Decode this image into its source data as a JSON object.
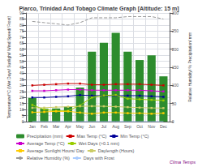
{
  "chart_data": {
    "type": "bar",
    "title": "Piarco, Trinidad And Tobago Climate Graph [Altitude: 15 m]",
    "categories": [
      "Jan",
      "Feb",
      "Mar",
      "Apr",
      "May",
      "Jun",
      "Jul",
      "Aug",
      "Sep",
      "Oct",
      "Nov",
      "Dec"
    ],
    "series": [
      {
        "name": "Precipitation (mm)",
        "type": "bar",
        "axis": "y2",
        "color": "#2d8c2d",
        "values": [
          65.5,
          35.5,
          36.3,
          41.1,
          94.0,
          193.0,
          218.0,
          245.0,
          193.0,
          170.0,
          183.0,
          125.0
        ]
      },
      {
        "name": "Max Temp (°C)",
        "type": "line",
        "color": "#cc0000",
        "marker": "square",
        "values": [
          30.0,
          30.5,
          31.0,
          31.5,
          31.5,
          30.5,
          30.5,
          31.0,
          31.0,
          31.0,
          30.5,
          30.0
        ]
      },
      {
        "name": "Min Temp (°C)",
        "type": "line",
        "color": "#000099",
        "marker": "square",
        "values": [
          20.0,
          20.0,
          20.5,
          21.0,
          22.0,
          21.5,
          21.5,
          21.5,
          21.5,
          21.5,
          21.0,
          20.5
        ]
      },
      {
        "name": "Average Temp (°C)",
        "type": "line",
        "color": "#cc00cc",
        "marker": "square",
        "values": [
          25.5,
          25.5,
          26.0,
          26.5,
          26.5,
          26.0,
          26.0,
          26.0,
          26.0,
          26.0,
          25.5,
          25.0
        ]
      },
      {
        "name": "Wet Days (>0.1 mm)",
        "type": "line",
        "color": "#99cc00",
        "marker": "square",
        "values": [
          13.8,
          10.0,
          8.9,
          8.9,
          13.4,
          20.0,
          21.7,
          22.0,
          19.0,
          18.5,
          18.0,
          17.5
        ]
      },
      {
        "name": "Average Sunlight Hours/ Day",
        "type": "line",
        "color": "#ffcc00",
        "marker": "square",
        "values": [
          7.7,
          8.0,
          8.5,
          8.5,
          7.5,
          6.5,
          7.5,
          7.5,
          7.0,
          7.0,
          6.5,
          7.0
        ]
      },
      {
        "name": "Daylength (Hours)",
        "type": "line",
        "color": "#cccc66",
        "marker": "square",
        "values": [
          11.4,
          11.5,
          12.0,
          12.3,
          12.7,
          12.8,
          12.7,
          12.4,
          12.0,
          11.6,
          11.3,
          11.2
        ]
      },
      {
        "name": "Relative Humidity (%)",
        "type": "line",
        "color": "#999999",
        "line_style": "dashed",
        "values": [
          83.0,
          82.0,
          81.0,
          80.0,
          82.0,
          86.0,
          86.0,
          86.0,
          87.0,
          87.0,
          87.0,
          85.0
        ]
      },
      {
        "name": "Days with Frost",
        "type": "line",
        "color": "#aaccff",
        "values": [
          0,
          0,
          0,
          0,
          0,
          0,
          0,
          0,
          0,
          0,
          0,
          0
        ]
      }
    ],
    "ylabel": "Temperature/°C (Wet Days/ Sunlight/ Wind Speed/ Frost)",
    "y2label": "Relative Humidity/ % Precipitation/ mm",
    "ylim": [
      0,
      90
    ],
    "yticks": [
      0,
      5,
      10,
      15,
      20,
      25,
      30,
      35,
      40,
      45,
      50,
      55,
      60,
      65,
      70,
      75,
      80,
      85,
      90
    ],
    "y2lim": [
      0,
      300
    ],
    "y2ticks": [
      0,
      50,
      100,
      150,
      200,
      250,
      300
    ],
    "annotation": "Clima Temps",
    "grid": true,
    "legend": "bottom"
  }
}
